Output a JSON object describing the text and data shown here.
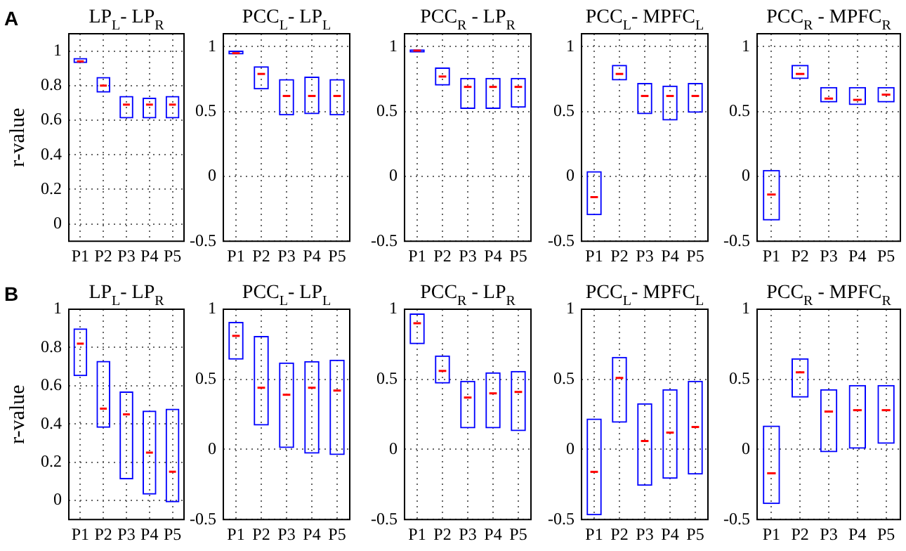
{
  "chart_data": [
    {
      "type": "box",
      "title": "LP$_{L}$- LP$_{R}$",
      "ylabel": "r-value",
      "annotations": [
        "A"
      ],
      "categories": [
        "P1",
        "P2",
        "P3",
        "P4",
        "P5"
      ],
      "ylim": [
        -0.1,
        1.1
      ],
      "yticks": [
        0,
        0.2,
        0.4,
        0.6,
        0.8,
        1
      ],
      "grid": true,
      "series": [
        {
          "color": "#0000ff",
          "boxes": [
            {
              "low": 0.93,
              "q1": 0.93,
              "median": 0.94,
              "q3": 0.96,
              "high": 0.96
            },
            {
              "low": 0.76,
              "q1": 0.76,
              "median": 0.8,
              "q3": 0.85,
              "high": 0.85
            },
            {
              "low": 0.61,
              "q1": 0.61,
              "median": 0.69,
              "q3": 0.74,
              "high": 0.74
            },
            {
              "low": 0.61,
              "q1": 0.61,
              "median": 0.69,
              "q3": 0.73,
              "high": 0.73
            },
            {
              "low": 0.61,
              "q1": 0.61,
              "median": 0.69,
              "q3": 0.74,
              "high": 0.74
            }
          ]
        }
      ]
    },
    {
      "type": "box",
      "title": "PCC$_{L}$- LP$_{L}$",
      "categories": [
        "P1",
        "P2",
        "P3",
        "P4",
        "P5"
      ],
      "ylim": [
        -0.5,
        1.1
      ],
      "yticks": [
        -0.5,
        0,
        0.5,
        1
      ],
      "grid": true,
      "series": [
        {
          "color": "#0000ff",
          "boxes": [
            {
              "low": 0.94,
              "q1": 0.94,
              "median": 0.95,
              "q3": 0.97,
              "high": 0.97
            },
            {
              "low": 0.67,
              "q1": 0.67,
              "median": 0.79,
              "q3": 0.85,
              "high": 0.85
            },
            {
              "low": 0.47,
              "q1": 0.47,
              "median": 0.62,
              "q3": 0.75,
              "high": 0.75
            },
            {
              "low": 0.48,
              "q1": 0.48,
              "median": 0.62,
              "q3": 0.77,
              "high": 0.77
            },
            {
              "low": 0.47,
              "q1": 0.47,
              "median": 0.62,
              "q3": 0.75,
              "high": 0.75
            }
          ]
        }
      ]
    },
    {
      "type": "box",
      "title": "PCC$_{R}$ - LP$_{R}$",
      "categories": [
        "P1",
        "P2",
        "P3",
        "P4",
        "P5"
      ],
      "ylim": [
        -0.5,
        1.1
      ],
      "yticks": [
        -0.5,
        0,
        0.5,
        1
      ],
      "grid": true,
      "series": [
        {
          "color": "#0000ff",
          "boxes": [
            {
              "low": 0.955,
              "q1": 0.955,
              "median": 0.97,
              "q3": 0.98,
              "high": 0.98
            },
            {
              "low": 0.7,
              "q1": 0.7,
              "median": 0.77,
              "q3": 0.84,
              "high": 0.84
            },
            {
              "low": 0.52,
              "q1": 0.52,
              "median": 0.69,
              "q3": 0.76,
              "high": 0.76
            },
            {
              "low": 0.52,
              "q1": 0.52,
              "median": 0.69,
              "q3": 0.76,
              "high": 0.76
            },
            {
              "low": 0.53,
              "q1": 0.53,
              "median": 0.69,
              "q3": 0.76,
              "high": 0.76
            }
          ]
        }
      ]
    },
    {
      "type": "box",
      "title": "PCC$_{L}$- MPFC$_{L}$",
      "categories": [
        "P1",
        "P2",
        "P3",
        "P4",
        "P5"
      ],
      "ylim": [
        -0.5,
        1.1
      ],
      "yticks": [
        -0.5,
        0,
        0.5,
        1
      ],
      "grid": true,
      "series": [
        {
          "color": "#0000ff",
          "boxes": [
            {
              "low": -0.3,
              "q1": -0.3,
              "median": -0.16,
              "q3": 0.04,
              "high": 0.04
            },
            {
              "low": 0.74,
              "q1": 0.74,
              "median": 0.79,
              "q3": 0.86,
              "high": 0.86
            },
            {
              "low": 0.48,
              "q1": 0.48,
              "median": 0.62,
              "q3": 0.72,
              "high": 0.72
            },
            {
              "low": 0.43,
              "q1": 0.43,
              "median": 0.62,
              "q3": 0.7,
              "high": 0.7
            },
            {
              "low": 0.49,
              "q1": 0.49,
              "median": 0.62,
              "q3": 0.72,
              "high": 0.72
            }
          ]
        }
      ]
    },
    {
      "type": "box",
      "title": "PCC$_{R}$ - MPFC$_{R}$",
      "categories": [
        "P1",
        "P2",
        "P3",
        "P4",
        "P5"
      ],
      "ylim": [
        -0.5,
        1.1
      ],
      "yticks": [
        -0.5,
        0,
        0.5,
        1
      ],
      "grid": true,
      "series": [
        {
          "color": "#0000ff",
          "boxes": [
            {
              "low": -0.34,
              "q1": -0.34,
              "median": -0.14,
              "q3": 0.05,
              "high": 0.05
            },
            {
              "low": 0.75,
              "q1": 0.75,
              "median": 0.79,
              "q3": 0.86,
              "high": 0.86
            },
            {
              "low": 0.57,
              "q1": 0.57,
              "median": 0.6,
              "q3": 0.69,
              "high": 0.69
            },
            {
              "low": 0.55,
              "q1": 0.55,
              "median": 0.59,
              "q3": 0.69,
              "high": 0.69
            },
            {
              "low": 0.57,
              "q1": 0.57,
              "median": 0.63,
              "q3": 0.69,
              "high": 0.69
            }
          ]
        }
      ]
    },
    {
      "type": "box",
      "title": "LP$_{L}$- LP$_{R}$",
      "ylabel": "r-value",
      "annotations": [
        "B"
      ],
      "categories": [
        "P1",
        "P2",
        "P3",
        "P4",
        "P5"
      ],
      "ylim": [
        -0.1,
        1
      ],
      "yticks": [
        0,
        0.2,
        0.4,
        0.6,
        0.8,
        1
      ],
      "grid": true,
      "series": [
        {
          "color": "#0000ff",
          "boxes": [
            {
              "low": 0.65,
              "q1": 0.65,
              "median": 0.82,
              "q3": 0.9,
              "high": 0.9
            },
            {
              "low": 0.38,
              "q1": 0.38,
              "median": 0.48,
              "q3": 0.73,
              "high": 0.73
            },
            {
              "low": 0.11,
              "q1": 0.11,
              "median": 0.45,
              "q3": 0.57,
              "high": 0.57
            },
            {
              "low": 0.03,
              "q1": 0.03,
              "median": 0.25,
              "q3": 0.47,
              "high": 0.47
            },
            {
              "low": -0.01,
              "q1": -0.01,
              "median": 0.15,
              "q3": 0.48,
              "high": 0.48
            }
          ]
        }
      ]
    },
    {
      "type": "box",
      "title": "PCC$_{L}$- LP$_{L}$",
      "categories": [
        "P1",
        "P2",
        "P3",
        "P4",
        "P5"
      ],
      "ylim": [
        -0.5,
        1
      ],
      "yticks": [
        -0.5,
        0,
        0.5,
        1
      ],
      "grid": true,
      "series": [
        {
          "color": "#0000ff",
          "boxes": [
            {
              "low": 0.64,
              "q1": 0.64,
              "median": 0.81,
              "q3": 0.91,
              "high": 0.91
            },
            {
              "low": 0.17,
              "q1": 0.17,
              "median": 0.44,
              "q3": 0.81,
              "high": 0.81
            },
            {
              "low": 0.01,
              "q1": 0.01,
              "median": 0.39,
              "q3": 0.62,
              "high": 0.62
            },
            {
              "low": -0.03,
              "q1": -0.03,
              "median": 0.44,
              "q3": 0.63,
              "high": 0.63
            },
            {
              "low": -0.04,
              "q1": -0.04,
              "median": 0.42,
              "q3": 0.64,
              "high": 0.64
            }
          ]
        }
      ]
    },
    {
      "type": "box",
      "title": "PCC$_{R}$ - LP$_{R}$",
      "categories": [
        "P1",
        "P2",
        "P3",
        "P4",
        "P5"
      ],
      "ylim": [
        -0.5,
        1
      ],
      "yticks": [
        -0.5,
        0,
        0.5,
        1
      ],
      "grid": true,
      "series": [
        {
          "color": "#0000ff",
          "boxes": [
            {
              "low": 0.75,
              "q1": 0.75,
              "median": 0.9,
              "q3": 0.97,
              "high": 0.97
            },
            {
              "low": 0.47,
              "q1": 0.47,
              "median": 0.56,
              "q3": 0.67,
              "high": 0.67
            },
            {
              "low": 0.15,
              "q1": 0.15,
              "median": 0.37,
              "q3": 0.49,
              "high": 0.49
            },
            {
              "low": 0.15,
              "q1": 0.15,
              "median": 0.4,
              "q3": 0.55,
              "high": 0.55
            },
            {
              "low": 0.13,
              "q1": 0.13,
              "median": 0.41,
              "q3": 0.56,
              "high": 0.56
            }
          ]
        }
      ]
    },
    {
      "type": "box",
      "title": "PCC$_{L}$- MPFC$_{L}$",
      "categories": [
        "P1",
        "P2",
        "P3",
        "P4",
        "P5"
      ],
      "ylim": [
        -0.5,
        1
      ],
      "yticks": [
        -0.5,
        0,
        0.5,
        1
      ],
      "grid": true,
      "series": [
        {
          "color": "#0000ff",
          "boxes": [
            {
              "low": -0.47,
              "q1": -0.47,
              "median": -0.16,
              "q3": 0.22,
              "high": 0.22
            },
            {
              "low": 0.19,
              "q1": 0.19,
              "median": 0.51,
              "q3": 0.66,
              "high": 0.66
            },
            {
              "low": -0.26,
              "q1": -0.26,
              "median": 0.06,
              "q3": 0.33,
              "high": 0.33
            },
            {
              "low": -0.21,
              "q1": -0.21,
              "median": 0.12,
              "q3": 0.43,
              "high": 0.43
            },
            {
              "low": -0.18,
              "q1": -0.18,
              "median": 0.16,
              "q3": 0.49,
              "high": 0.49
            }
          ]
        }
      ]
    },
    {
      "type": "box",
      "title": "PCC$_{R}$ - MPFC$_{R}$",
      "categories": [
        "P1",
        "P2",
        "P3",
        "P4",
        "P5"
      ],
      "ylim": [
        -0.5,
        1
      ],
      "yticks": [
        -0.5,
        0,
        0.5,
        1
      ],
      "grid": true,
      "series": [
        {
          "color": "#0000ff",
          "boxes": [
            {
              "low": -0.39,
              "q1": -0.39,
              "median": -0.17,
              "q3": 0.17,
              "high": 0.17
            },
            {
              "low": 0.37,
              "q1": 0.37,
              "median": 0.55,
              "q3": 0.65,
              "high": 0.65
            },
            {
              "low": -0.02,
              "q1": -0.02,
              "median": 0.27,
              "q3": 0.43,
              "high": 0.43
            },
            {
              "low": 0,
              "q1": 0,
              "median": 0.28,
              "q3": 0.46,
              "high": 0.46
            },
            {
              "low": 0.04,
              "q1": 0.04,
              "median": 0.28,
              "q3": 0.46,
              "high": 0.46
            }
          ]
        }
      ]
    }
  ]
}
